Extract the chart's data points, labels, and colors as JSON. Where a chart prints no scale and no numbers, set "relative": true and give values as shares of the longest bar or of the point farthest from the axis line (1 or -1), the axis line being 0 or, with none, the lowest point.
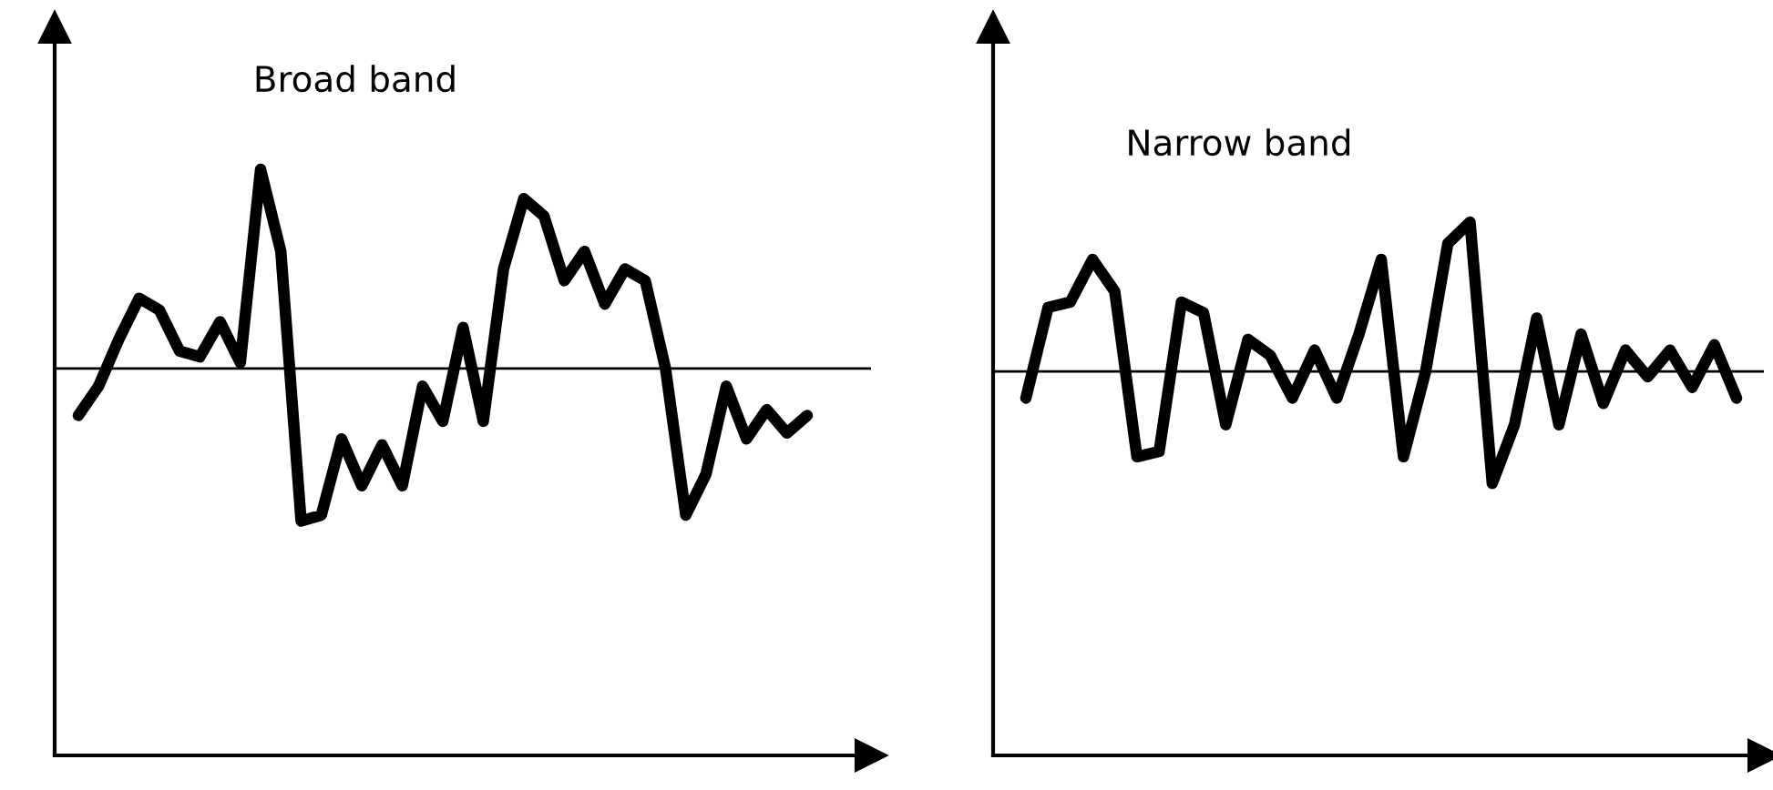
{
  "chart_data": [
    {
      "type": "line",
      "title": "Broad band",
      "relative": true,
      "tick_labels": false,
      "marker": "none",
      "line_style": "solid",
      "categories": [
        null,
        null,
        null,
        null,
        null,
        null,
        null,
        null,
        null,
        null,
        null,
        null,
        null,
        null,
        null,
        null,
        null,
        null,
        null,
        null,
        null,
        null,
        null,
        null,
        null,
        null,
        null,
        null,
        null,
        null,
        null,
        null,
        null,
        null,
        null,
        null,
        null
      ],
      "series": [
        {
          "color": "#000000",
          "values": [
            0.58,
            0.63,
            0.71,
            0.78,
            0.76,
            0.69,
            0.68,
            0.74,
            0.67,
            1.0,
            0.86,
            0.4,
            0.41,
            0.54,
            0.46,
            0.53,
            0.46,
            0.63,
            0.57,
            0.73,
            0.57,
            0.83,
            0.95,
            0.92,
            0.81,
            0.86,
            0.77,
            0.83,
            0.81,
            0.66,
            0.41,
            0.48,
            0.63,
            0.54,
            0.59,
            0.55,
            0.58
          ]
        }
      ],
      "ref_lines": [
        {
          "axis": "y",
          "value": 0.66,
          "color": "#000000"
        }
      ]
    },
    {
      "type": "line",
      "title": "Narrow band",
      "relative": true,
      "tick_labels": false,
      "marker": "none",
      "line_style": "solid",
      "categories": [
        null,
        null,
        null,
        null,
        null,
        null,
        null,
        null,
        null,
        null,
        null,
        null,
        null,
        null,
        null,
        null,
        null,
        null,
        null,
        null,
        null,
        null,
        null,
        null,
        null,
        null,
        null,
        null,
        null,
        null,
        null,
        null,
        null
      ],
      "series": [
        {
          "color": "#000000",
          "values": [
            0.67,
            0.84,
            0.85,
            0.93,
            0.87,
            0.56,
            0.57,
            0.85,
            0.83,
            0.62,
            0.78,
            0.75,
            0.67,
            0.76,
            0.67,
            0.79,
            0.93,
            0.56,
            0.72,
            0.96,
            1.0,
            0.51,
            0.62,
            0.82,
            0.62,
            0.79,
            0.66,
            0.76,
            0.71,
            0.76,
            0.69,
            0.77,
            0.67
          ]
        }
      ],
      "ref_lines": [
        {
          "axis": "y",
          "value": 0.72,
          "color": "#000000"
        }
      ]
    }
  ]
}
